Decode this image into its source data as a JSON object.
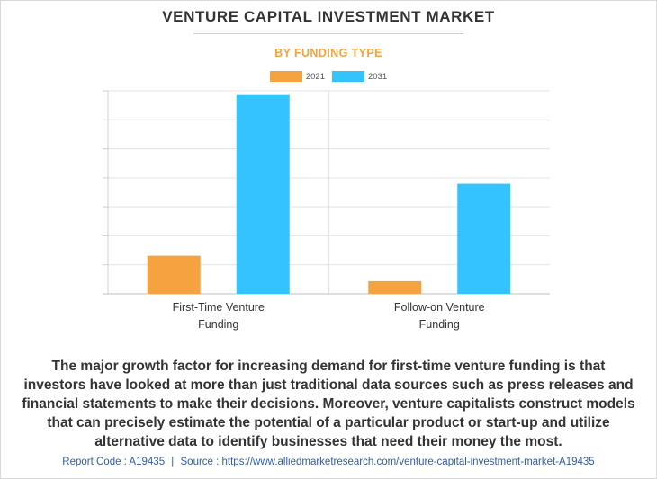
{
  "header": {
    "title": "VENTURE CAPITAL INVESTMENT MARKET",
    "subtitle": "BY FUNDING TYPE"
  },
  "chart_data": {
    "type": "bar",
    "categories": [
      "First-Time Venture Funding",
      "Follow-on Venture Funding"
    ],
    "category_lines": [
      [
        "First-Time Venture",
        "Funding"
      ],
      [
        "Follow-on Venture",
        "Funding"
      ]
    ],
    "series": [
      {
        "name": "2021",
        "values": [
          13.5,
          4.5
        ],
        "color": "#f4a340"
      },
      {
        "name": "2031",
        "values": [
          70.5,
          39.0
        ],
        "color": "#33c4ff"
      }
    ],
    "ylim": [
      0,
      72
    ],
    "y_gridlines": 7,
    "grid": true,
    "legend": "top-center",
    "title": "",
    "xlabel": "",
    "ylabel": ""
  },
  "description": "The major growth factor for increasing demand for first-time venture funding is that investors have looked at more than just traditional data sources such as press releases and financial statements to make their decisions. Moreover, venture capitalists construct models that can precisely estimate the potential of a particular product or start-up and utilize alternative data to identify businesses that need their money the most.",
  "footer": {
    "report_code": "Report Code : A19435",
    "separator": "|",
    "source": "Source : https://www.alliedmarketresearch.com/venture-capital-investment-market-A19435"
  }
}
